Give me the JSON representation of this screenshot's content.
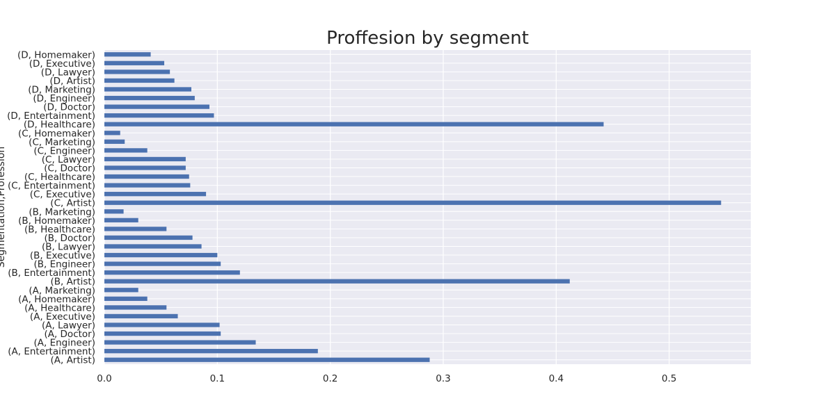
{
  "chart_data": {
    "type": "bar",
    "orientation": "horizontal",
    "title": "Proffesion by segment",
    "ylabel": "Segmentation,Profession",
    "xlabel": "",
    "xlim": [
      0,
      0.5723
    ],
    "xticks": [
      0.0,
      0.1,
      0.2,
      0.3,
      0.4,
      0.5
    ],
    "xtick_labels": [
      "0.0",
      "0.1",
      "0.2",
      "0.3",
      "0.4",
      "0.5"
    ],
    "grid": true,
    "colors": {
      "bar": "#4c72b0",
      "plot_bg": "#eaeaf2",
      "grid": "#ffffff"
    },
    "categories": [
      "(A, Artist)",
      "(A, Entertainment)",
      "(A, Engineer)",
      "(A, Doctor)",
      "(A, Lawyer)",
      "(A, Executive)",
      "(A, Healthcare)",
      "(A, Homemaker)",
      "(A, Marketing)",
      "(B, Artist)",
      "(B, Entertainment)",
      "(B, Engineer)",
      "(B, Executive)",
      "(B, Lawyer)",
      "(B, Doctor)",
      "(B, Healthcare)",
      "(B, Homemaker)",
      "(B, Marketing)",
      "(C, Artist)",
      "(C, Executive)",
      "(C, Entertainment)",
      "(C, Healthcare)",
      "(C, Doctor)",
      "(C, Lawyer)",
      "(C, Engineer)",
      "(C, Marketing)",
      "(C, Homemaker)",
      "(D, Healthcare)",
      "(D, Entertainment)",
      "(D, Doctor)",
      "(D, Engineer)",
      "(D, Marketing)",
      "(D, Artist)",
      "(D, Lawyer)",
      "(D, Executive)",
      "(D, Homemaker)"
    ],
    "values": [
      0.288,
      0.189,
      0.134,
      0.103,
      0.102,
      0.065,
      0.055,
      0.038,
      0.03,
      0.412,
      0.12,
      0.103,
      0.1,
      0.086,
      0.078,
      0.055,
      0.03,
      0.017,
      0.546,
      0.09,
      0.076,
      0.075,
      0.072,
      0.072,
      0.038,
      0.018,
      0.014,
      0.442,
      0.097,
      0.093,
      0.08,
      0.077,
      0.062,
      0.058,
      0.053,
      0.041
    ]
  }
}
